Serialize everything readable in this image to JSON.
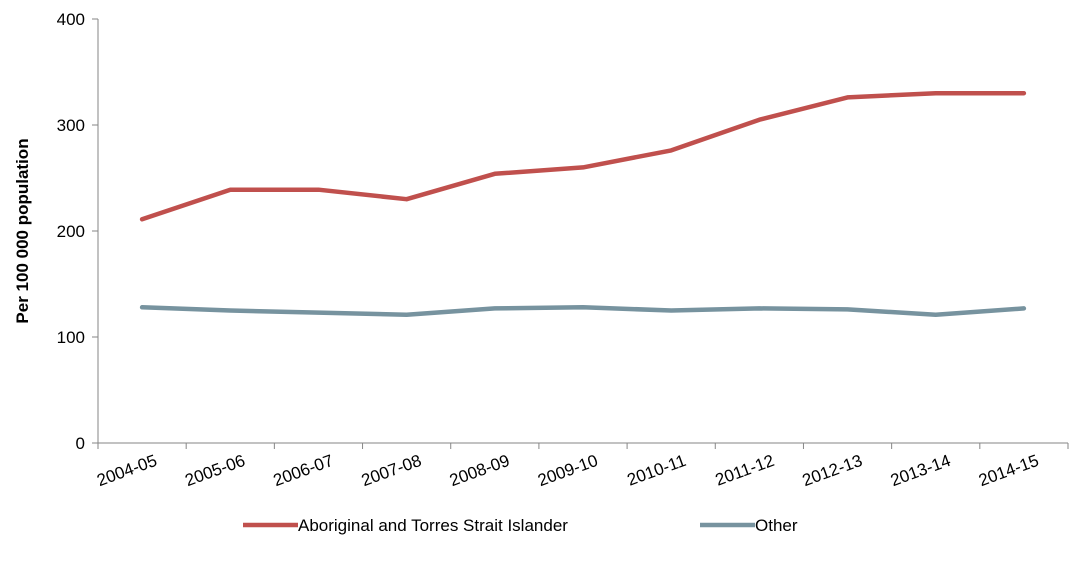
{
  "chart_data": {
    "type": "line",
    "title": "",
    "xlabel": "",
    "ylabel": "Per 100 000 population",
    "ylim": [
      0,
      400
    ],
    "yticks": [
      0,
      100,
      200,
      300,
      400
    ],
    "grid": false,
    "legend_position": "bottom",
    "categories": [
      "2004-05",
      "2005-06",
      "2006-07",
      "2007-08",
      "2008-09",
      "2009-10",
      "2010-11",
      "2011-12",
      "2012-13",
      "2013-14",
      "2014-15"
    ],
    "series": [
      {
        "name": "Aboriginal and Torres Strait Islander",
        "color": "#c0504d",
        "values": [
          211,
          239,
          239,
          230,
          254,
          260,
          276,
          305,
          326,
          330,
          330
        ]
      },
      {
        "name": "Other",
        "color": "#77939f",
        "values": [
          128,
          125,
          123,
          121,
          127,
          128,
          125,
          127,
          126,
          121,
          127
        ]
      }
    ]
  }
}
